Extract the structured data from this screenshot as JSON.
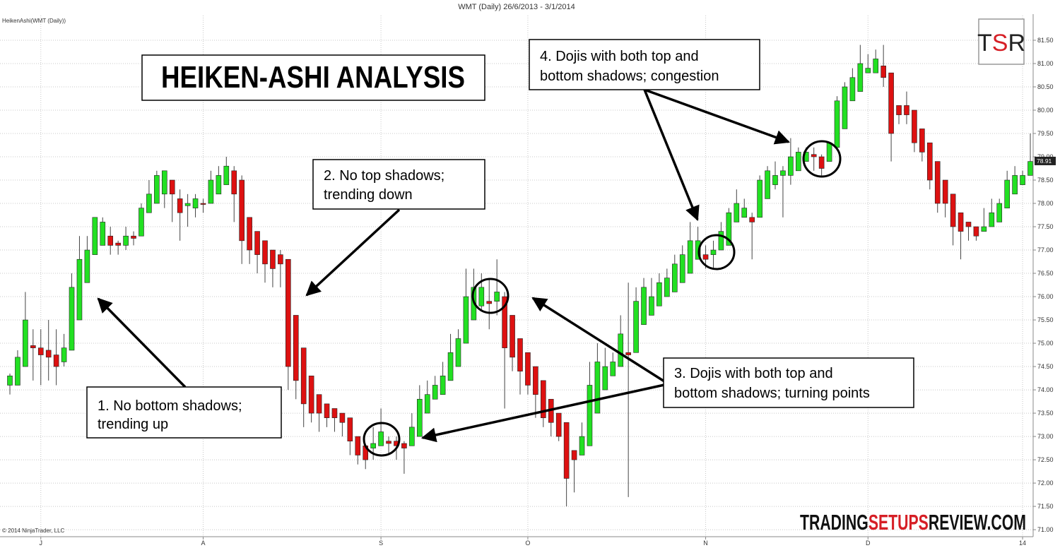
{
  "chart_data": {
    "type": "candlestick",
    "header": "WMT (Daily)  26/6/2013 - 3/1/2014",
    "indicator_label": "HeikenAshi(WMT (Daily))",
    "copyright": "© 2014 NinjaTrader, LLC",
    "title": "HEIKEN-ASHI ANALYSIS",
    "logo_parts": [
      "T",
      "S",
      "R"
    ],
    "watermark_parts": [
      "TRADING",
      "SETUPS",
      "REVIEW.COM"
    ],
    "annotations": [
      [
        "1. No bottom shadows;",
        "trending up"
      ],
      [
        "2. No top shadows;",
        "trending down"
      ],
      [
        "3. Dojis with both top and",
        "bottom shadows; turning points"
      ],
      [
        "4. Dojis with both top and",
        "bottom shadows; congestion"
      ]
    ],
    "up_color": "#22e022",
    "down_color": "#dd1111",
    "grid": true,
    "last_price": 78.91,
    "ylim": [
      70.85,
      82.03
    ],
    "yticks": [
      {
        "value": 71,
        "label": "71.00"
      },
      {
        "value": 71.5,
        "label": "71.50"
      },
      {
        "value": 72,
        "label": "72.00"
      },
      {
        "value": 72.5,
        "label": "72.50"
      },
      {
        "value": 73,
        "label": "73.00"
      },
      {
        "value": 73.5,
        "label": "73.50"
      },
      {
        "value": 74,
        "label": "74.00"
      },
      {
        "value": 74.5,
        "label": "74.50"
      },
      {
        "value": 75,
        "label": "75.00"
      },
      {
        "value": 75.5,
        "label": "75.50"
      },
      {
        "value": 76,
        "label": "76.00"
      },
      {
        "value": 76.5,
        "label": "76.50"
      },
      {
        "value": 77,
        "label": "77.00"
      },
      {
        "value": 77.5,
        "label": "77.50"
      },
      {
        "value": 78,
        "label": "78.00"
      },
      {
        "value": 78.5,
        "label": "78.50"
      },
      {
        "value": 79,
        "label": "79.00"
      },
      {
        "value": 79.5,
        "label": "79.50"
      },
      {
        "value": 80,
        "label": "80.00"
      },
      {
        "value": 80.5,
        "label": "80.50"
      },
      {
        "value": 81,
        "label": "81.00"
      },
      {
        "value": 81.5,
        "label": "81.50"
      }
    ],
    "categories": [
      null,
      null,
      null,
      null,
      "J",
      null,
      null,
      null,
      null,
      null,
      null,
      null,
      null,
      null,
      null,
      null,
      null,
      null,
      null,
      null,
      null,
      null,
      null,
      null,
      null,
      "A",
      null,
      null,
      null,
      null,
      null,
      null,
      null,
      null,
      null,
      null,
      null,
      null,
      null,
      null,
      null,
      null,
      null,
      null,
      null,
      null,
      null,
      null,
      "S",
      null,
      null,
      null,
      null,
      null,
      null,
      null,
      null,
      null,
      null,
      null,
      null,
      null,
      null,
      null,
      null,
      null,
      null,
      "O",
      null,
      null,
      null,
      null,
      null,
      null,
      null,
      null,
      null,
      null,
      null,
      null,
      null,
      null,
      null,
      null,
      null,
      null,
      null,
      null,
      null,
      null,
      "N",
      null,
      null,
      null,
      null,
      null,
      null,
      null,
      null,
      null,
      null,
      null,
      null,
      null,
      null,
      null,
      null,
      null,
      null,
      null,
      null,
      "D",
      null,
      null,
      null,
      null,
      null,
      null,
      null,
      null,
      null,
      null,
      null,
      null,
      null,
      null,
      null,
      null,
      null,
      null,
      null,
      "14",
      null
    ],
    "open": [
      74.1,
      74.1,
      74.5,
      74.95,
      74.9,
      74.85,
      74.75,
      74.6,
      74.85,
      75.5,
      76.3,
      76.9,
      77.1,
      77.3,
      77.15,
      77.1,
      77.3,
      77.3,
      77.8,
      78.0,
      78.2,
      78.5,
      78.1,
      77.95,
      77.9,
      78.0,
      78.0,
      78.2,
      78.4,
      78.7,
      78.5,
      77.7,
      77.4,
      77.2,
      77.0,
      76.9,
      76.8,
      75.6,
      74.9,
      74.3,
      73.9,
      73.7,
      73.6,
      73.5,
      73.4,
      73.0,
      72.8,
      72.75,
      72.8,
      72.9,
      72.9,
      72.85,
      72.8,
      73.0,
      73.5,
      73.8,
      73.9,
      74.2,
      74.5,
      75.0,
      75.5,
      75.8,
      75.9,
      75.9,
      76.0,
      75.6,
      75.1,
      74.8,
      74.5,
      74.2,
      73.8,
      73.5,
      73.3,
      72.7,
      72.6,
      72.8,
      73.5,
      74.0,
      74.3,
      74.5,
      74.8,
      74.8,
      75.4,
      75.6,
      75.8,
      76.0,
      76.1,
      76.3,
      76.5,
      76.8,
      76.9,
      76.9,
      77.0,
      77.1,
      77.6,
      77.7,
      77.7,
      77.7,
      78.1,
      78.4,
      78.6,
      78.6,
      78.7,
      78.9,
      79.05,
      79.0,
      78.9,
      79.2,
      79.6,
      80.2,
      80.4,
      80.8,
      80.8,
      80.95,
      80.8,
      80.1,
      80.1,
      80.0,
      79.6,
      79.3,
      78.9,
      78.5,
      78.2,
      77.8,
      77.6,
      77.5,
      77.4,
      77.5,
      77.6,
      77.9,
      78.2,
      78.4,
      78.6
    ],
    "high": [
      74.35,
      74.85,
      76.1,
      75.3,
      75.3,
      75.5,
      75.3,
      75.2,
      76.5,
      77.3,
      77.3,
      77.7,
      77.7,
      77.5,
      77.2,
      77.5,
      77.4,
      78.0,
      78.5,
      78.7,
      78.7,
      78.5,
      78.3,
      78.2,
      78.2,
      78.1,
      78.7,
      78.8,
      79.0,
      78.8,
      78.6,
      77.7,
      77.4,
      77.2,
      77.0,
      77.0,
      76.8,
      75.6,
      74.9,
      74.3,
      73.9,
      73.7,
      73.6,
      73.5,
      73.4,
      73.0,
      72.8,
      73.2,
      73.6,
      73.0,
      73.0,
      72.9,
      73.5,
      74.1,
      74.2,
      74.3,
      74.6,
      75.2,
      75.3,
      76.6,
      76.6,
      76.5,
      76.4,
      76.8,
      76.1,
      75.6,
      75.1,
      74.8,
      74.5,
      74.2,
      73.8,
      73.5,
      73.3,
      72.7,
      73.3,
      74.6,
      75.0,
      74.9,
      74.8,
      75.6,
      76.3,
      76.2,
      76.4,
      76.4,
      76.5,
      76.6,
      76.9,
      77.1,
      77.6,
      77.5,
      77.1,
      77.2,
      77.6,
      77.9,
      78.3,
      78.1,
      77.8,
      78.6,
      78.8,
      78.9,
      78.8,
      79.4,
      79.2,
      79.2,
      79.2,
      79.05,
      79.3,
      80.3,
      80.6,
      80.9,
      81.4,
      81.2,
      81.3,
      81.4,
      80.8,
      80.1,
      80.4,
      80.0,
      79.6,
      79.3,
      78.9,
      78.5,
      78.2,
      77.8,
      77.6,
      77.5,
      77.9,
      78.1,
      78.1,
      78.7,
      78.8,
      78.7,
      79.5
    ],
    "low": [
      73.9,
      74.1,
      74.5,
      74.2,
      74.1,
      74.2,
      74.1,
      74.5,
      74.85,
      75.5,
      76.3,
      76.9,
      77.1,
      76.9,
      76.9,
      77.0,
      77.1,
      77.3,
      77.8,
      78.0,
      77.9,
      77.6,
      77.2,
      77.5,
      77.7,
      77.8,
      78.0,
      78.2,
      78.4,
      77.6,
      76.7,
      76.7,
      76.5,
      76.3,
      76.2,
      76.2,
      74.0,
      73.8,
      73.2,
      73.3,
      73.1,
      73.2,
      73.1,
      73.0,
      72.6,
      72.4,
      72.3,
      72.5,
      72.8,
      72.6,
      72.5,
      72.2,
      72.8,
      73.0,
      73.5,
      73.8,
      73.9,
      74.2,
      74.5,
      75.0,
      75.5,
      75.7,
      75.3,
      75.6,
      73.6,
      74.4,
      73.9,
      73.9,
      73.4,
      73.2,
      73.0,
      72.9,
      71.5,
      71.8,
      72.6,
      72.8,
      73.5,
      74.0,
      74.3,
      74.5,
      71.7,
      74.8,
      75.4,
      75.6,
      75.8,
      76.0,
      76.1,
      76.3,
      76.5,
      76.8,
      76.6,
      76.6,
      77.0,
      77.1,
      77.6,
      77.7,
      76.8,
      77.7,
      78.1,
      78.3,
      77.7,
      78.4,
      78.7,
      78.9,
      78.7,
      78.6,
      78.9,
      79.2,
      79.6,
      80.2,
      80.4,
      80.8,
      80.8,
      80.5,
      78.9,
      79.7,
      79.7,
      79.1,
      78.9,
      78.3,
      77.8,
      77.7,
      77.1,
      76.8,
      77.2,
      77.2,
      77.4,
      77.5,
      77.6,
      77.9,
      78.2,
      78.4,
      78.6
    ],
    "close": [
      74.3,
      74.7,
      75.5,
      74.9,
      74.75,
      74.7,
      74.5,
      74.9,
      76.2,
      76.8,
      77.0,
      77.7,
      77.6,
      77.1,
      77.1,
      77.3,
      77.25,
      77.9,
      78.2,
      78.6,
      78.7,
      78.2,
      77.8,
      78.0,
      78.1,
      77.98,
      78.5,
      78.6,
      78.8,
      78.2,
      77.2,
      77.0,
      76.9,
      76.7,
      76.6,
      76.7,
      74.5,
      74.2,
      73.7,
      73.5,
      73.5,
      73.4,
      73.4,
      73.3,
      72.9,
      72.6,
      72.5,
      72.85,
      73.1,
      72.85,
      72.8,
      72.75,
      73.2,
      73.8,
      73.9,
      74.1,
      74.3,
      74.8,
      75.1,
      76.0,
      76.2,
      76.2,
      75.85,
      76.1,
      74.9,
      74.7,
      74.4,
      74.1,
      73.9,
      73.4,
      73.3,
      73.0,
      72.1,
      72.5,
      73.0,
      74.1,
      74.6,
      74.5,
      74.6,
      75.2,
      74.75,
      75.9,
      76.2,
      76.0,
      76.3,
      76.4,
      76.7,
      76.9,
      77.2,
      77.2,
      76.8,
      77.0,
      77.4,
      77.8,
      78.0,
      77.9,
      77.6,
      78.5,
      78.7,
      78.6,
      78.7,
      79.0,
      79.1,
      79.1,
      79.0,
      78.75,
      79.3,
      80.2,
      80.5,
      80.7,
      81.0,
      80.9,
      81.1,
      80.7,
      79.5,
      79.9,
      79.9,
      79.3,
      79.1,
      78.5,
      78.0,
      78.0,
      77.5,
      77.4,
      77.5,
      77.3,
      77.5,
      77.8,
      78.0,
      78.5,
      78.6,
      78.6,
      78.9
    ]
  }
}
